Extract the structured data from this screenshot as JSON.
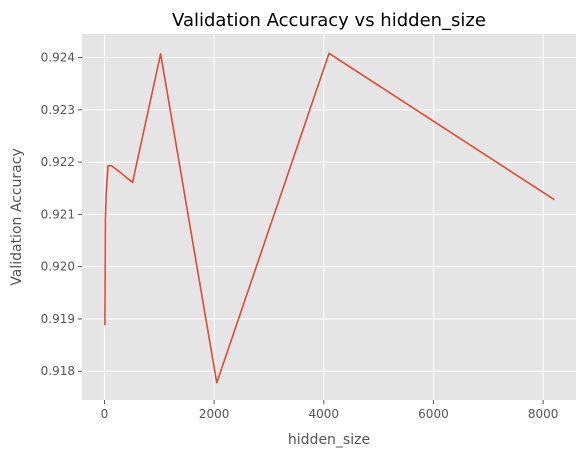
{
  "chart_data": {
    "type": "line",
    "title": "Validation Accuracy vs hidden_size",
    "xlabel": "hidden_size",
    "ylabel": "Validation Accuracy",
    "xlim": [
      -410,
      8600
    ],
    "ylim": [
      0.91745,
      0.92445
    ],
    "xticks": [
      0,
      2000,
      4000,
      6000,
      8000
    ],
    "xtick_labels": [
      "0",
      "2000",
      "4000",
      "6000",
      "8000"
    ],
    "yticks": [
      0.918,
      0.919,
      0.92,
      0.921,
      0.922,
      0.923,
      0.924
    ],
    "ytick_labels": [
      "0.918",
      "0.919",
      "0.920",
      "0.921",
      "0.922",
      "0.923",
      "0.924"
    ],
    "grid": true,
    "style": "ggplot",
    "series": [
      {
        "color": "#E24A33",
        "x": [
          8,
          16,
          32,
          64,
          128,
          256,
          512,
          1024,
          2048,
          4096,
          8192
        ],
        "y": [
          0.9189,
          0.9209,
          0.9214,
          0.92193,
          0.92193,
          0.92183,
          0.92161,
          0.92407,
          0.91778,
          0.92408,
          0.92129
        ]
      }
    ]
  }
}
